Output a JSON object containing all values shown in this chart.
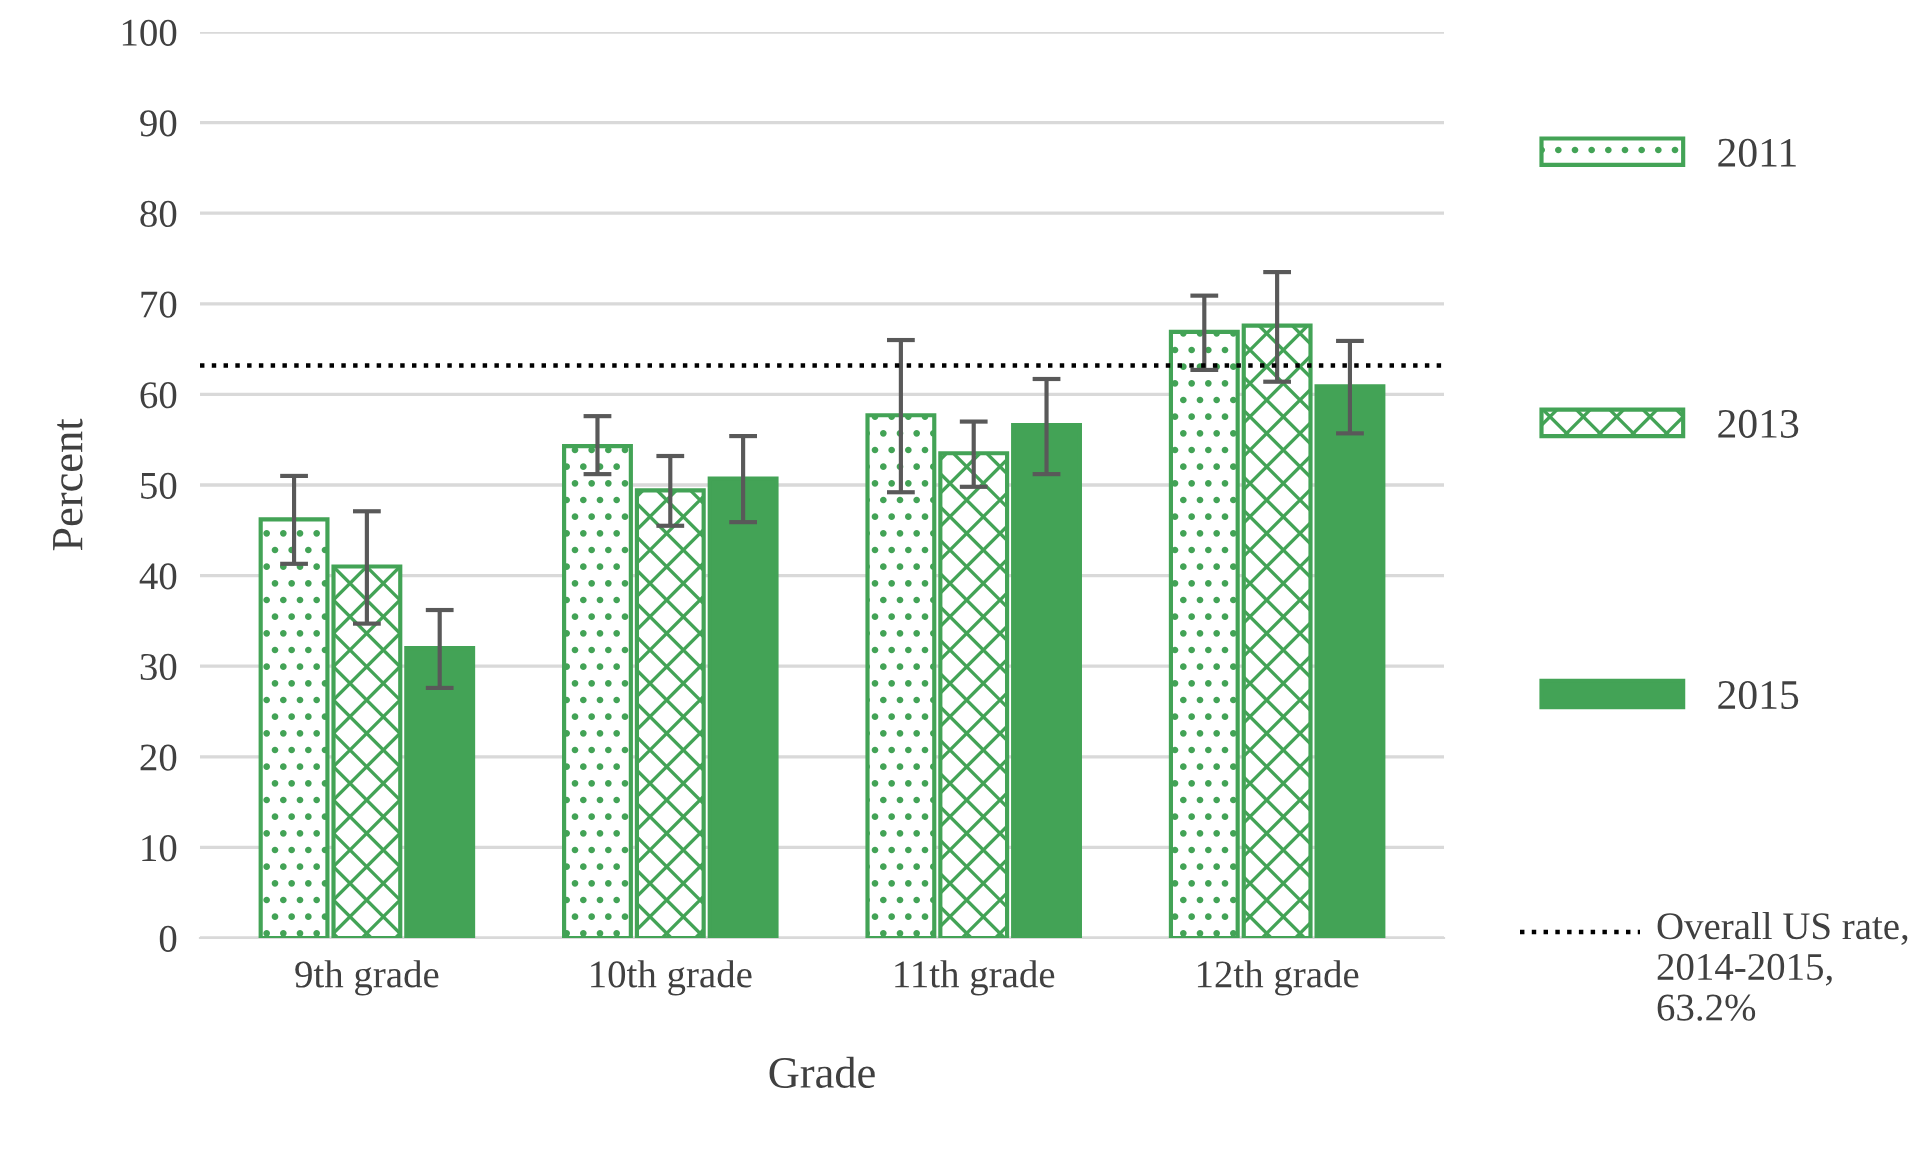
{
  "chart_data": {
    "type": "bar",
    "xlabel": "Grade",
    "ylabel": "Percent",
    "categories": [
      "9th grade",
      "10th grade",
      "11th grade",
      "12th grade"
    ],
    "series": [
      {
        "name": "2011",
        "color": "#43a356",
        "values": [
          46.2,
          54.3,
          57.7,
          66.9
        ],
        "errors": [
          [
            41.3,
            51.0
          ],
          [
            51.2,
            57.6
          ],
          [
            49.2,
            66.0
          ],
          [
            62.7,
            70.9
          ]
        ]
      },
      {
        "name": "2013",
        "color": "#43a356",
        "values": [
          41.0,
          49.4,
          53.5,
          67.6
        ],
        "errors": [
          [
            34.7,
            47.1
          ],
          [
            45.5,
            53.2
          ],
          [
            49.8,
            57.0
          ],
          [
            61.4,
            73.5
          ]
        ]
      },
      {
        "name": "2015",
        "color": "#43a356",
        "values": [
          32.0,
          50.7,
          56.6,
          60.9
        ],
        "errors": [
          [
            27.6,
            36.2
          ],
          [
            45.9,
            55.4
          ],
          [
            51.2,
            61.7
          ],
          [
            55.7,
            65.9
          ]
        ]
      }
    ],
    "ylim": [
      0,
      100
    ],
    "yticks": [
      0,
      10,
      20,
      30,
      40,
      50,
      60,
      70,
      80,
      90,
      100
    ],
    "grid": "y",
    "legend": "right",
    "ref_lines": [
      {
        "axis": "y",
        "value": 63.2,
        "label": "Overall US rate, 2014-2015, 63.2%",
        "color": "#000000",
        "line_style": "dotted"
      }
    ]
  }
}
